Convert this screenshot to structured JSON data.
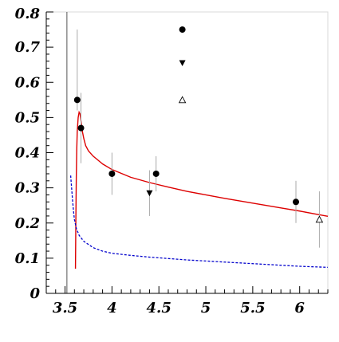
{
  "chart_data": {
    "type": "scatter",
    "title": "",
    "xlabel": "",
    "ylabel": "",
    "xlim": [
      3.3,
      6.3
    ],
    "ylim": [
      0,
      0.8
    ],
    "x_ticks": [
      "3.5",
      "4",
      "4.5",
      "5",
      "5.5",
      "6"
    ],
    "y_ticks": [
      "0",
      "0.1",
      "0.2",
      "0.3",
      "0.4",
      "0.5",
      "0.6",
      "0.7",
      "0.8"
    ],
    "vertical_line_x": 3.52,
    "series": [
      {
        "marker": "filled-circle",
        "color": "#000000",
        "points": [
          {
            "x": 3.63,
            "y": 0.55,
            "err_lo": 0.03,
            "err_hi": 0.2
          },
          {
            "x": 3.67,
            "y": 0.47,
            "err_lo": 0.1,
            "err_hi": 0.1
          },
          {
            "x": 4.0,
            "y": 0.34,
            "err_lo": 0.06,
            "err_hi": 0.06
          },
          {
            "x": 4.47,
            "y": 0.34,
            "err_lo": 0.05,
            "err_hi": 0.05
          },
          {
            "x": 5.96,
            "y": 0.26,
            "err_lo": 0.06,
            "err_hi": 0.06
          }
        ]
      },
      {
        "marker": "filled-triangle-down",
        "color": "#000000",
        "points": [
          {
            "x": 4.4,
            "y": 0.285,
            "err_lo": 0.065,
            "err_hi": 0.065
          }
        ]
      },
      {
        "marker": "open-triangle-up",
        "color": "#000000",
        "points": [
          {
            "x": 6.21,
            "y": 0.21,
            "err_lo": 0.08,
            "err_hi": 0.08
          }
        ]
      }
    ],
    "legend": {
      "placement": "top-center",
      "x": 4.75,
      "markers": [
        {
          "marker": "filled-circle",
          "y": 0.75
        },
        {
          "marker": "filled-triangle-down",
          "y": 0.655
        },
        {
          "marker": "open-triangle-up",
          "y": 0.55
        }
      ]
    },
    "curves": [
      {
        "style": "solid",
        "color": "#dd0000",
        "points": [
          [
            3.611,
            0.07
          ],
          [
            3.615,
            0.2
          ],
          [
            3.62,
            0.33
          ],
          [
            3.625,
            0.41
          ],
          [
            3.63,
            0.46
          ],
          [
            3.64,
            0.5
          ],
          [
            3.65,
            0.515
          ],
          [
            3.66,
            0.51
          ],
          [
            3.67,
            0.49
          ],
          [
            3.685,
            0.46
          ],
          [
            3.7,
            0.44
          ],
          [
            3.72,
            0.42
          ],
          [
            3.75,
            0.405
          ],
          [
            3.8,
            0.39
          ],
          [
            3.9,
            0.368
          ],
          [
            4.0,
            0.352
          ],
          [
            4.2,
            0.33
          ],
          [
            4.4,
            0.315
          ],
          [
            4.6,
            0.302
          ],
          [
            4.8,
            0.29
          ],
          [
            5.0,
            0.28
          ],
          [
            5.2,
            0.27
          ],
          [
            5.4,
            0.261
          ],
          [
            5.6,
            0.252
          ],
          [
            5.8,
            0.243
          ],
          [
            6.0,
            0.234
          ],
          [
            6.2,
            0.224
          ],
          [
            6.3,
            0.219
          ]
        ]
      },
      {
        "style": "dashed",
        "color": "#0000cc",
        "points": [
          [
            3.56,
            0.335
          ],
          [
            3.57,
            0.3
          ],
          [
            3.58,
            0.265
          ],
          [
            3.59,
            0.235
          ],
          [
            3.6,
            0.21
          ],
          [
            3.62,
            0.185
          ],
          [
            3.65,
            0.165
          ],
          [
            3.7,
            0.148
          ],
          [
            3.8,
            0.13
          ],
          [
            3.9,
            0.12
          ],
          [
            4.0,
            0.114
          ],
          [
            4.2,
            0.108
          ],
          [
            4.4,
            0.103
          ],
          [
            4.6,
            0.099
          ],
          [
            4.8,
            0.095
          ],
          [
            5.0,
            0.092
          ],
          [
            5.2,
            0.089
          ],
          [
            5.4,
            0.086
          ],
          [
            5.6,
            0.083
          ],
          [
            5.8,
            0.08
          ],
          [
            6.0,
            0.077
          ],
          [
            6.2,
            0.075
          ],
          [
            6.3,
            0.074
          ]
        ]
      }
    ]
  }
}
